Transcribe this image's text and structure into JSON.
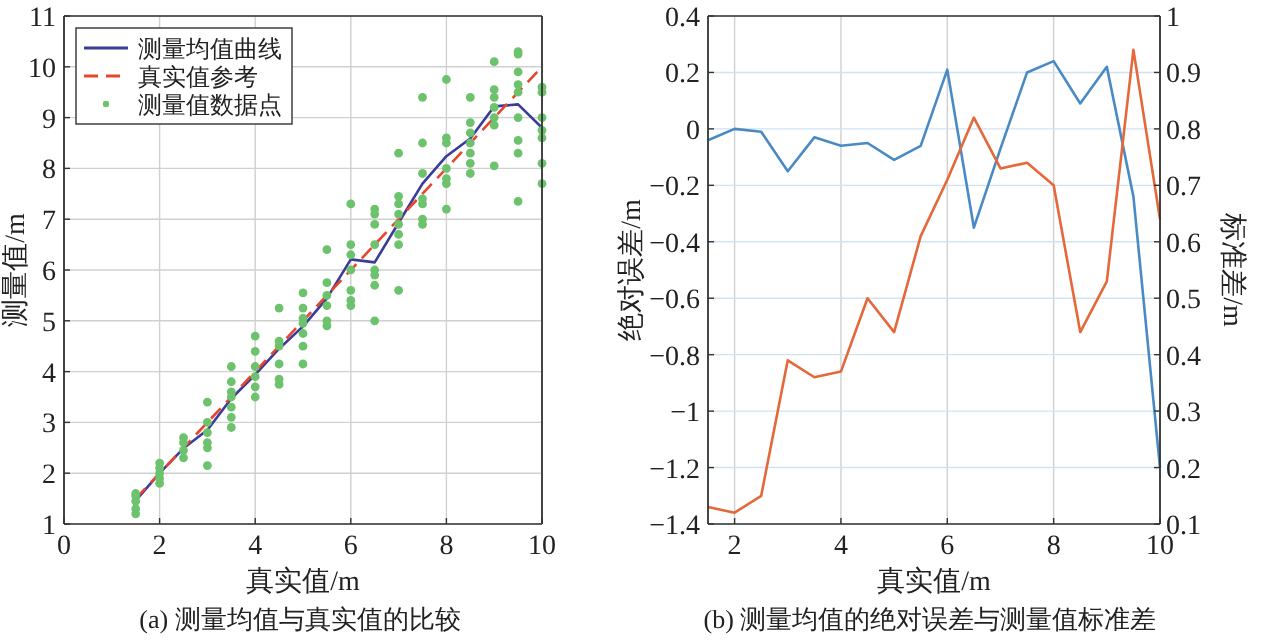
{
  "chart_data": [
    {
      "type": "line",
      "xlabel": "真实值/m",
      "ylabel": "测量值/m",
      "annotations": [
        "(a) 测量均值与真实值的比较"
      ],
      "xlim": [
        0,
        10
      ],
      "xticks": [
        0,
        2,
        4,
        6,
        8,
        10
      ],
      "ylim": [
        1,
        11
      ],
      "yticks": [
        1,
        2,
        3,
        4,
        5,
        6,
        7,
        8,
        9,
        10,
        11
      ],
      "grid": true,
      "legend": "top left",
      "x": [
        1.5,
        2,
        2.5,
        3,
        3.5,
        4,
        4.5,
        5,
        5.5,
        6,
        6.5,
        7,
        7.5,
        8,
        8.5,
        9,
        9.5,
        10
      ],
      "series": [
        {
          "name": "测量均值曲线",
          "color": "#3b3b9a",
          "values": [
            1.46,
            2.0,
            2.49,
            2.85,
            3.47,
            3.94,
            4.45,
            4.89,
            5.44,
            6.21,
            6.15,
            6.93,
            7.7,
            8.24,
            8.59,
            9.22,
            9.26,
            8.8
          ]
        },
        {
          "name": "真实值参考",
          "color": "#e8452c",
          "line_style": "dashed",
          "x": [
            1.5,
            10
          ],
          "values": [
            1.5,
            10
          ]
        },
        {
          "name": "测量值数据点",
          "type": "scatter",
          "marker": "circle",
          "color": "#6dc36d",
          "x": [
            1.5,
            1.5,
            1.5,
            1.5,
            1.5,
            2,
            2,
            2,
            2,
            2,
            2.5,
            2.5,
            2.5,
            2.5,
            3,
            3,
            3,
            3,
            3,
            3,
            3.5,
            3.5,
            3.5,
            3.5,
            3.5,
            3.5,
            3.5,
            4,
            4,
            4,
            4,
            4,
            4,
            4.5,
            4.5,
            4.5,
            4.5,
            4.5,
            4.5,
            5,
            5,
            5,
            5,
            5,
            5,
            5,
            5.5,
            5.5,
            5.5,
            5.5,
            5.5,
            5.5,
            6,
            6,
            6,
            6,
            6,
            6,
            6,
            6.5,
            6.5,
            6.5,
            6.5,
            6.5,
            6.5,
            6.5,
            6.5,
            7,
            7,
            7,
            7,
            7,
            7,
            7,
            7,
            7.5,
            7.5,
            7.5,
            7.5,
            7.5,
            7.5,
            7.5,
            8,
            8,
            8,
            8,
            8,
            8,
            8,
            8.5,
            8.5,
            8.5,
            8.5,
            8.5,
            8.5,
            8.5,
            9,
            9,
            9,
            9,
            9,
            9,
            9,
            9.5,
            9.5,
            9.5,
            9.5,
            9.5,
            9.5,
            9.5,
            9.5,
            9.5,
            10,
            10,
            10,
            10,
            10,
            10,
            10
          ],
          "values": [
            1.2,
            1.3,
            1.45,
            1.55,
            1.6,
            1.8,
            1.9,
            2.0,
            2.1,
            2.2,
            2.3,
            2.45,
            2.6,
            2.7,
            2.15,
            2.5,
            2.6,
            2.8,
            3.0,
            3.4,
            2.9,
            3.1,
            3.3,
            3.5,
            3.6,
            3.8,
            4.1,
            3.5,
            3.7,
            3.9,
            4.1,
            4.4,
            4.7,
            3.75,
            3.85,
            4.15,
            4.5,
            4.6,
            5.25,
            4.15,
            4.5,
            4.75,
            4.95,
            5.05,
            5.25,
            5.55,
            4.9,
            5.0,
            5.3,
            5.5,
            5.75,
            6.4,
            5.3,
            5.4,
            5.6,
            6.0,
            6.3,
            6.5,
            7.3,
            5.0,
            5.7,
            5.9,
            6.0,
            6.5,
            6.9,
            7.1,
            7.2,
            5.6,
            6.5,
            6.7,
            6.9,
            7.1,
            7.3,
            7.45,
            8.3,
            6.9,
            7.0,
            7.3,
            7.4,
            7.9,
            8.5,
            9.4,
            7.2,
            7.7,
            7.8,
            8.0,
            8.5,
            8.6,
            9.75,
            7.9,
            8.1,
            8.3,
            8.5,
            8.7,
            8.9,
            9.4,
            8.05,
            8.85,
            9.0,
            9.2,
            9.4,
            9.55,
            10.1,
            7.35,
            8.3,
            8.55,
            9.0,
            9.5,
            9.65,
            9.9,
            10.25,
            10.3,
            7.7,
            8.1,
            8.6,
            8.75,
            9.0,
            9.5,
            9.6
          ]
        }
      ]
    },
    {
      "type": "line",
      "xlabel": "真实值/m",
      "ylabel": "绝对误差/m",
      "y2label": "标准差/m",
      "annotations": [
        "(b) 测量均值的绝对误差与测量值标准差"
      ],
      "xlim": [
        1.5,
        10
      ],
      "xticks": [
        2,
        4,
        6,
        8,
        10
      ],
      "ylim": [
        -1.4,
        0.4
      ],
      "yticks": [
        -1.4,
        -1.2,
        -1,
        -0.8,
        -0.6,
        -0.4,
        -0.2,
        0,
        0.2,
        0.4
      ],
      "y2lim": [
        0.1,
        1
      ],
      "y2ticks": [
        0.1,
        0.2,
        0.3,
        0.4,
        0.5,
        0.6,
        0.7,
        0.8,
        0.9,
        1
      ],
      "grid": true,
      "x": [
        1.5,
        2,
        2.5,
        3,
        3.5,
        4,
        4.5,
        5,
        5.5,
        6,
        6.5,
        7,
        7.5,
        8,
        8.5,
        9,
        9.5,
        10
      ],
      "series": [
        {
          "color": "#4a8ac4",
          "values": [
            -0.04,
            0.0,
            -0.01,
            -0.15,
            -0.03,
            -0.06,
            -0.05,
            -0.11,
            -0.06,
            0.21,
            -0.35,
            -0.07,
            0.2,
            0.24,
            0.09,
            0.22,
            -0.24,
            -1.2
          ]
        },
        {
          "color": "#e5683a",
          "axis": "y2",
          "values": [
            0.13,
            0.12,
            0.15,
            0.39,
            0.36,
            0.37,
            0.5,
            0.44,
            0.61,
            0.71,
            0.82,
            0.73,
            0.74,
            0.7,
            0.44,
            0.53,
            0.94,
            0.64
          ]
        }
      ]
    }
  ]
}
